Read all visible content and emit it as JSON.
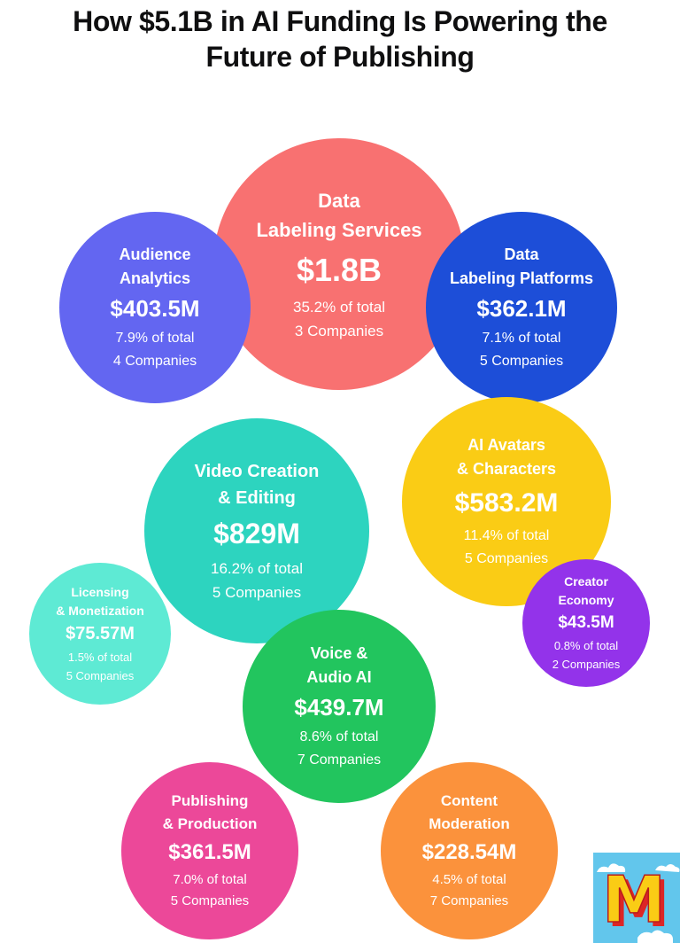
{
  "title_lines": [
    "How $5.1B in AI Funding Is Powering the",
    "Future of Publishing"
  ],
  "chart_data": {
    "type": "bubble",
    "title": "How $5.1B in AI Funding Is Powering the Future of Publishing",
    "unit": "USD",
    "categories": [
      {
        "key": "data-labeling-services",
        "lines": [
          "Data",
          "Labeling Services"
        ],
        "amount_label": "$1.8B",
        "value_musd": 1800,
        "share_label": "35.2% of total",
        "share_pct": 35.2,
        "companies_label": "3 Companies",
        "companies": 3,
        "color": "#f87171"
      },
      {
        "key": "audience-analytics",
        "lines": [
          "Audience",
          "Analytics"
        ],
        "amount_label": "$403.5M",
        "value_musd": 403.5,
        "share_label": "7.9% of total",
        "share_pct": 7.9,
        "companies_label": "4 Companies",
        "companies": 4,
        "color": "#6366f1"
      },
      {
        "key": "data-labeling-platforms",
        "lines": [
          "Data",
          "Labeling Platforms"
        ],
        "amount_label": "$362.1M",
        "value_musd": 362.1,
        "share_label": "7.1% of total",
        "share_pct": 7.1,
        "companies_label": "5 Companies",
        "companies": 5,
        "color": "#1d4ed8"
      },
      {
        "key": "ai-avatars-characters",
        "lines": [
          "AI Avatars",
          "& Characters"
        ],
        "amount_label": "$583.2M",
        "value_musd": 583.2,
        "share_label": "11.4% of total",
        "share_pct": 11.4,
        "companies_label": "5 Companies",
        "companies": 5,
        "color": "#facc15"
      },
      {
        "key": "video-creation-editing",
        "lines": [
          "Video Creation",
          "& Editing"
        ],
        "amount_label": "$829M",
        "value_musd": 829,
        "share_label": "16.2% of total",
        "share_pct": 16.2,
        "companies_label": "5 Companies",
        "companies": 5,
        "color": "#2dd4bf"
      },
      {
        "key": "licensing-monetization",
        "lines": [
          "Licensing",
          "& Monetization"
        ],
        "amount_label": "$75.57M",
        "value_musd": 75.57,
        "share_label": "1.5% of total",
        "share_pct": 1.5,
        "companies_label": "5 Companies",
        "companies": 5,
        "color": "#5eead4"
      },
      {
        "key": "creator-economy",
        "lines": [
          "Creator",
          "Economy"
        ],
        "amount_label": "$43.5M",
        "value_musd": 43.5,
        "share_label": "0.8% of total",
        "share_pct": 0.8,
        "companies_label": "2 Companies",
        "companies": 2,
        "color": "#9333ea"
      },
      {
        "key": "voice-audio-ai",
        "lines": [
          "Voice &",
          "Audio AI"
        ],
        "amount_label": "$439.7M",
        "value_musd": 439.7,
        "share_label": "8.6% of total",
        "share_pct": 8.6,
        "companies_label": "7 Companies",
        "companies": 7,
        "color": "#22c55e"
      },
      {
        "key": "publishing-production",
        "lines": [
          "Publishing",
          "& Production"
        ],
        "amount_label": "$361.5M",
        "value_musd": 361.5,
        "share_label": "7.0% of total",
        "share_pct": 7.0,
        "companies_label": "5 Companies",
        "companies": 5,
        "color": "#ec4899"
      },
      {
        "key": "content-moderation",
        "lines": [
          "Content",
          "Moderation"
        ],
        "amount_label": "$228.54M",
        "value_musd": 228.54,
        "share_label": "4.5% of total",
        "share_pct": 4.5,
        "companies_label": "7 Companies",
        "companies": 7,
        "color": "#fb923c"
      }
    ]
  },
  "logo": {
    "letter": "M",
    "colors": {
      "background": "#62c6ec",
      "letter": "#facc15",
      "shadow": "#dc2626",
      "cloud": "#ffffff"
    }
  }
}
